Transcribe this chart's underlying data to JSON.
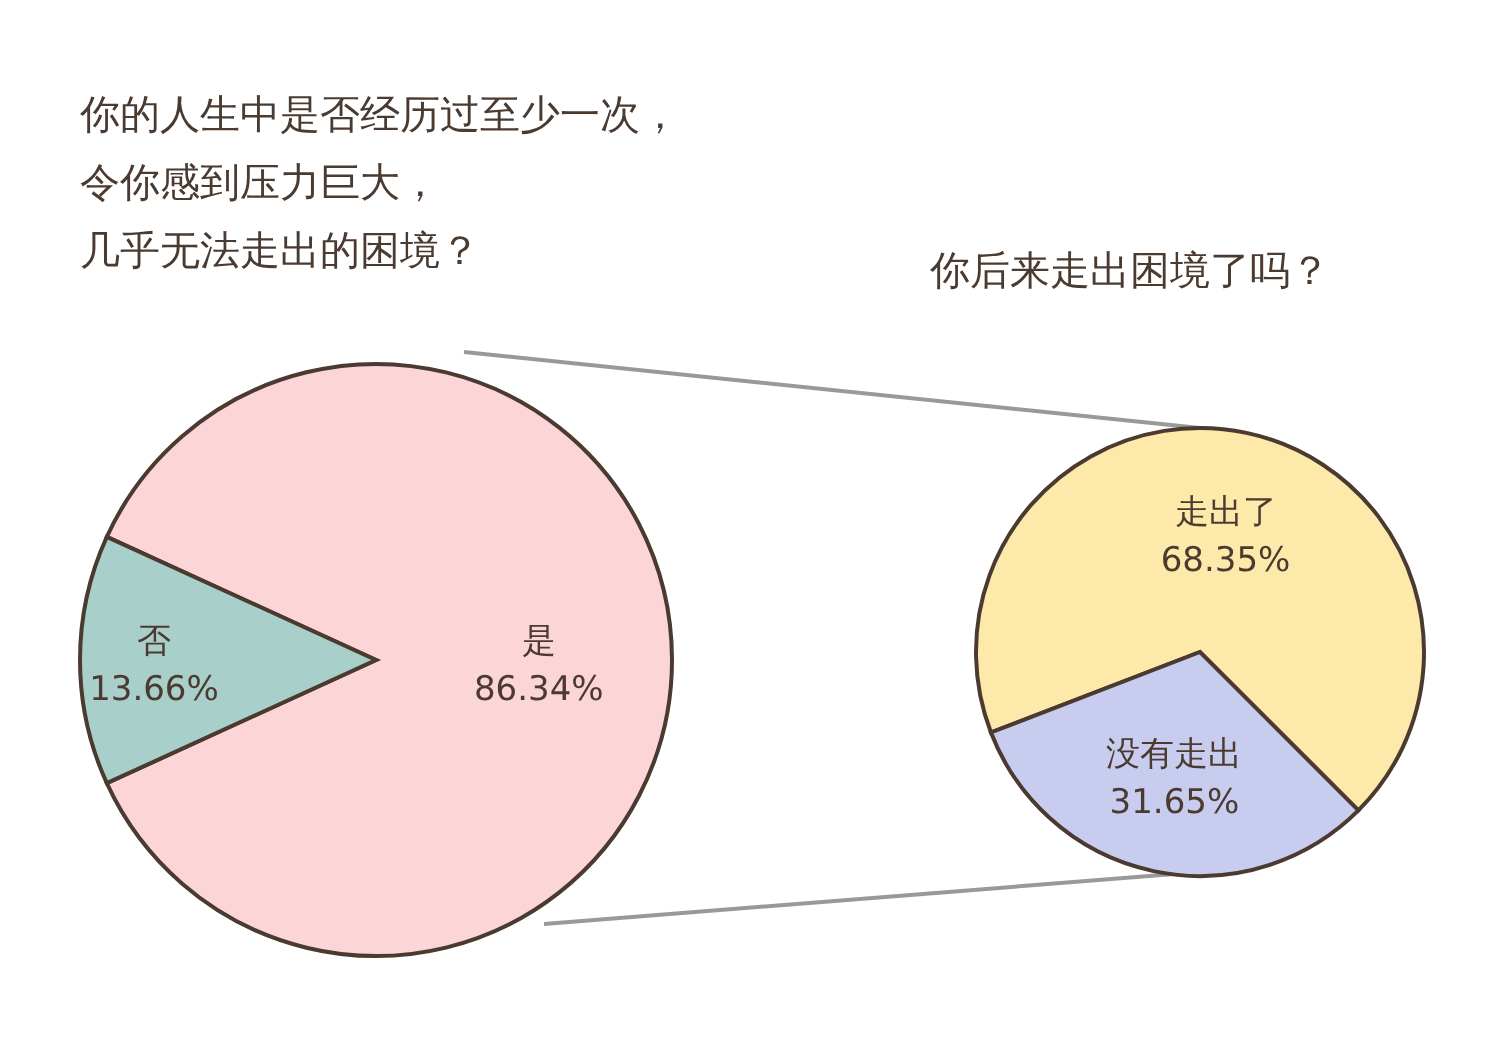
{
  "chart_data": [
    {
      "type": "pie",
      "title": "你的人生中是否经历过至少一次，令你感到压力巨大，几乎无法走出的困境？",
      "categories": [
        "是",
        "否"
      ],
      "values": [
        86.34,
        13.66
      ],
      "colors": [
        "#fcd5d9",
        "#a8cfc9"
      ],
      "value_labels": [
        "86.34%",
        "13.66%"
      ]
    },
    {
      "type": "pie",
      "title": "你后来走出困境了吗？",
      "categories": [
        "走出了",
        "没有走出"
      ],
      "values": [
        68.35,
        31.65
      ],
      "colors": [
        "#fde9a9",
        "#c8cdf0"
      ],
      "value_labels": [
        "68.35%",
        "31.65%"
      ]
    }
  ]
}
